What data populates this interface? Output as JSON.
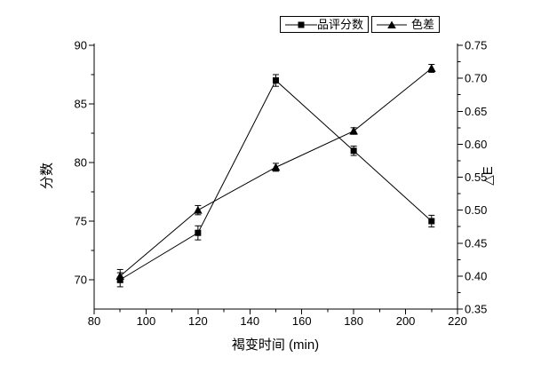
{
  "legend": {
    "items": [
      {
        "label": "品评分数",
        "marker": "square"
      },
      {
        "label": "色差",
        "marker": "triangle"
      }
    ]
  },
  "chart_data": {
    "type": "line",
    "title": "",
    "xlabel": "褐变时间 (min)",
    "x": [
      90,
      120,
      150,
      180,
      210
    ],
    "xlim": [
      80,
      220
    ],
    "x_major_ticks": [
      80,
      100,
      120,
      140,
      160,
      180,
      200,
      220
    ],
    "x_minor_step": 10,
    "left_axis": {
      "label": "分数",
      "range": [
        67.5,
        90
      ],
      "major_ticks": [
        70,
        75,
        80,
        85,
        90
      ],
      "minor_step": 2.5
    },
    "right_axis": {
      "label": "△E",
      "range": [
        0.35,
        0.75
      ],
      "major_tick_labels": [
        "0.35",
        "0.40",
        "0.45",
        "0.50",
        "0.55",
        "0.60",
        "0.65",
        "0.70",
        "0.75"
      ],
      "minor_step": 0.025
    },
    "series": [
      {
        "name": "品评分数",
        "axis": "left",
        "marker": "square",
        "values": [
          70,
          74,
          87,
          81,
          75
        ],
        "errors": [
          0.6,
          0.6,
          0.5,
          0.4,
          0.5
        ]
      },
      {
        "name": "色差",
        "axis": "right",
        "marker": "triangle",
        "values": [
          0.4,
          0.5,
          0.565,
          0.62,
          0.715
        ],
        "errors": [
          0.01,
          0.007,
          0.006,
          0.005,
          0.006
        ]
      }
    ],
    "grid": false,
    "legend_position": "top-center",
    "colors": {
      "line": "#000000",
      "marker": "#000000",
      "background": "#ffffff"
    }
  }
}
